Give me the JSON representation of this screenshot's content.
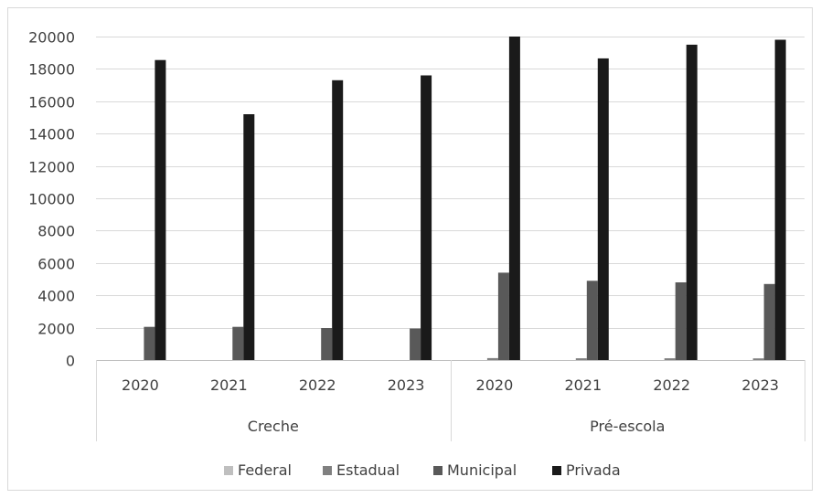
{
  "chart_data": {
    "type": "bar",
    "title": "",
    "xlabel": "",
    "ylabel": "",
    "ylim": [
      0,
      20000
    ],
    "yticks": [
      0,
      2000,
      4000,
      6000,
      8000,
      10000,
      12000,
      14000,
      16000,
      18000,
      20000
    ],
    "grid": true,
    "legend_position": "bottom",
    "groups": [
      {
        "label": "Creche",
        "categories": [
          "2020",
          "2021",
          "2022",
          "2023"
        ]
      },
      {
        "label": "Pré-escola",
        "categories": [
          "2020",
          "2021",
          "2022",
          "2023"
        ]
      }
    ],
    "series": [
      {
        "name": "Federal",
        "color": "#bfbfbf",
        "values": [
          0,
          0,
          0,
          0,
          0,
          0,
          0,
          0
        ]
      },
      {
        "name": "Estadual",
        "color": "#808080",
        "values": [
          0,
          0,
          0,
          0,
          120,
          110,
          110,
          100
        ]
      },
      {
        "name": "Municipal",
        "color": "#595959",
        "values": [
          2050,
          2050,
          1980,
          1950,
          5400,
          4900,
          4800,
          4700
        ]
      },
      {
        "name": "Privada",
        "color": "#1a1a1a",
        "values": [
          18550,
          15200,
          17300,
          17600,
          20000,
          18650,
          19500,
          19800
        ]
      }
    ]
  }
}
